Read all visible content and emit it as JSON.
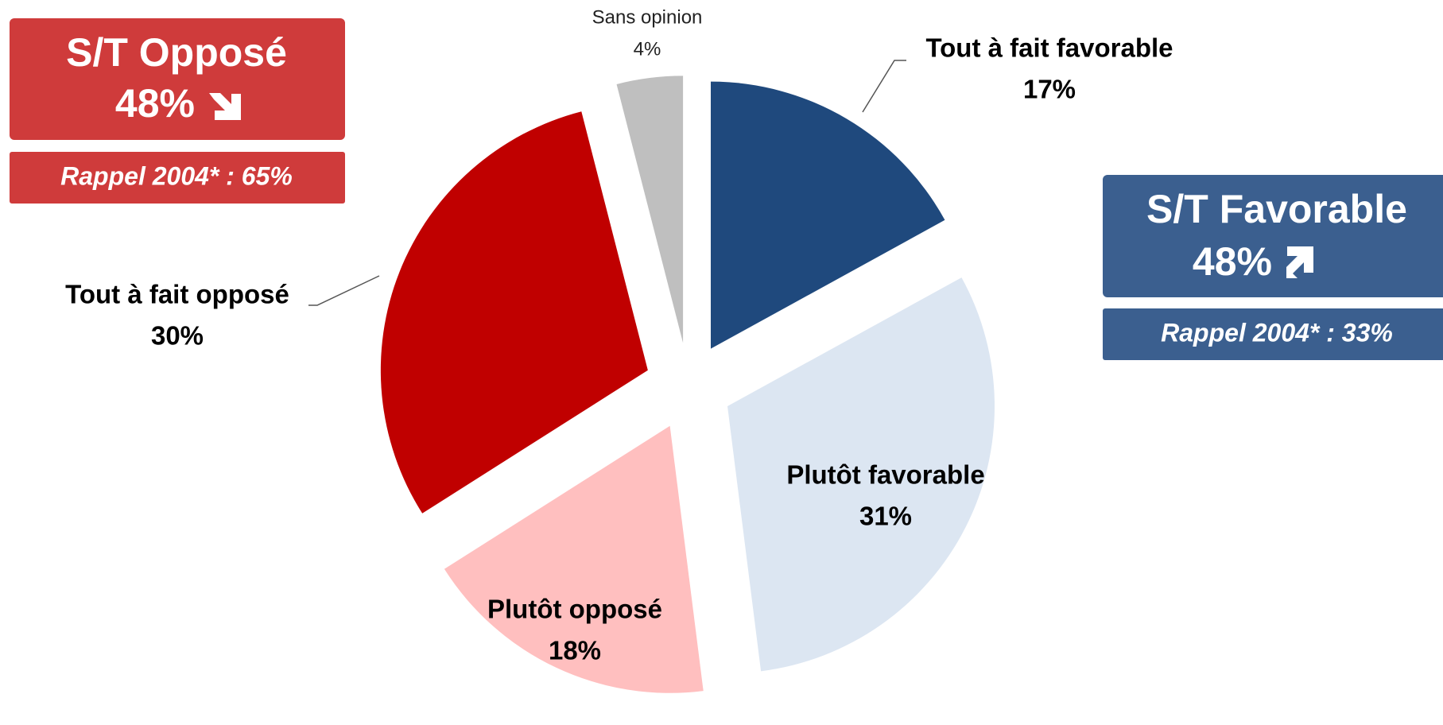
{
  "chart_data": {
    "type": "pie",
    "categories": [
      "Tout à fait favorable",
      "Plutôt favorable",
      "Plutôt opposé",
      "Tout à fait opposé",
      "Sans opinion"
    ],
    "values": [
      17,
      31,
      18,
      30,
      4
    ],
    "value_labels": [
      "17%",
      "31%",
      "18%",
      "30%",
      "4%"
    ],
    "colors": [
      "#1f497d",
      "#dce6f2",
      "#ffbfbf",
      "#c00000",
      "#bfbfbf"
    ],
    "annotations": [
      {
        "title": "S/T Opposé",
        "value": "48%",
        "note": "Rappel 2004* : 65%"
      },
      {
        "title": "S/T Favorable",
        "value": "48%",
        "note": "Rappel 2004* : 33%"
      }
    ]
  }
}
